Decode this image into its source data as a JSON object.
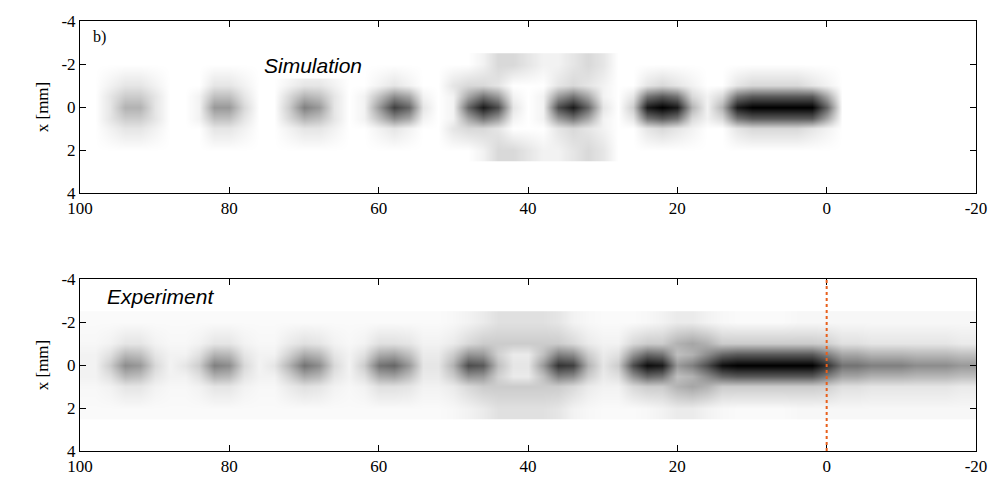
{
  "chart_data": [
    {
      "type": "heatmap",
      "annotations": [
        "b)",
        "Simulation"
      ],
      "ylabel": "x [mm]",
      "xlim": [
        100,
        -20
      ],
      "xticks": [
        100,
        80,
        60,
        40,
        20,
        0,
        -20
      ],
      "ylim": [
        4,
        -4
      ],
      "yticks": [
        -4,
        -2,
        0,
        2,
        4
      ],
      "zlim": [
        0,
        100
      ],
      "colorscale": [
        "#ffffff",
        "#000000"
      ],
      "x": [
        100,
        98,
        96,
        94,
        92,
        90,
        88,
        86,
        84,
        82,
        80,
        78,
        76,
        74,
        72,
        70,
        68,
        66,
        64,
        62,
        60,
        58,
        56,
        54,
        52,
        50,
        48,
        46,
        44,
        42,
        40,
        38,
        36,
        34,
        32,
        30,
        28,
        26,
        24,
        22,
        20,
        18,
        16,
        14,
        12,
        10,
        8,
        6,
        4,
        2,
        0,
        -2,
        -4,
        -6,
        -8,
        -10,
        -12,
        -14,
        -16,
        -18,
        -20
      ],
      "y": [
        -2,
        -1,
        -0.5,
        0,
        0.5,
        1,
        2
      ],
      "z": [
        [
          0,
          0,
          0,
          0,
          0,
          0,
          0,
          0,
          0,
          0,
          0,
          0,
          0,
          0,
          0,
          0,
          0,
          0,
          0,
          0,
          0,
          0,
          0,
          0,
          0,
          0,
          0,
          5,
          15,
          15,
          10,
          5,
          5,
          10,
          15,
          10,
          0,
          0,
          0,
          0,
          0,
          0,
          0,
          0,
          0,
          0,
          0,
          0,
          0,
          0,
          0,
          0,
          0,
          0,
          0,
          0,
          0,
          0,
          0,
          0,
          0
        ],
        [
          0,
          0,
          5,
          10,
          10,
          5,
          0,
          0,
          0,
          10,
          10,
          5,
          0,
          0,
          5,
          10,
          10,
          5,
          0,
          0,
          5,
          10,
          5,
          0,
          0,
          10,
          15,
          15,
          10,
          0,
          0,
          0,
          10,
          15,
          10,
          5,
          0,
          0,
          10,
          15,
          10,
          5,
          0,
          0,
          10,
          15,
          15,
          15,
          15,
          10,
          5,
          0,
          0,
          0,
          0,
          0,
          0,
          0,
          0,
          0,
          0
        ],
        [
          0,
          0,
          10,
          20,
          20,
          10,
          0,
          0,
          5,
          25,
          25,
          10,
          0,
          0,
          15,
          30,
          25,
          10,
          0,
          5,
          25,
          45,
          35,
          5,
          0,
          5,
          35,
          55,
          40,
          5,
          0,
          5,
          40,
          55,
          35,
          5,
          0,
          10,
          55,
          65,
          55,
          15,
          5,
          15,
          55,
          65,
          65,
          65,
          65,
          65,
          35,
          0,
          0,
          0,
          0,
          0,
          0,
          0,
          0,
          0,
          0
        ],
        [
          0,
          0,
          10,
          30,
          30,
          10,
          0,
          0,
          5,
          40,
          40,
          15,
          0,
          0,
          20,
          50,
          40,
          10,
          0,
          5,
          40,
          75,
          60,
          10,
          0,
          5,
          60,
          90,
          70,
          10,
          0,
          5,
          70,
          90,
          60,
          10,
          0,
          20,
          90,
          100,
          90,
          30,
          5,
          30,
          90,
          100,
          100,
          100,
          100,
          100,
          60,
          0,
          0,
          0,
          0,
          0,
          0,
          0,
          0,
          0,
          0
        ],
        [
          0,
          0,
          10,
          20,
          20,
          10,
          0,
          0,
          5,
          25,
          25,
          10,
          0,
          0,
          15,
          30,
          25,
          10,
          0,
          5,
          25,
          45,
          35,
          5,
          0,
          5,
          35,
          55,
          40,
          5,
          0,
          5,
          40,
          55,
          35,
          5,
          0,
          10,
          55,
          65,
          55,
          15,
          5,
          15,
          55,
          65,
          65,
          65,
          65,
          65,
          35,
          0,
          0,
          0,
          0,
          0,
          0,
          0,
          0,
          0,
          0
        ],
        [
          0,
          0,
          5,
          10,
          10,
          5,
          0,
          0,
          0,
          10,
          10,
          5,
          0,
          0,
          5,
          10,
          10,
          5,
          0,
          0,
          5,
          10,
          5,
          0,
          0,
          10,
          15,
          15,
          10,
          0,
          0,
          0,
          10,
          15,
          10,
          5,
          0,
          0,
          10,
          15,
          10,
          5,
          0,
          0,
          10,
          15,
          15,
          15,
          15,
          10,
          5,
          0,
          0,
          0,
          0,
          0,
          0,
          0,
          0,
          0,
          0
        ],
        [
          0,
          0,
          0,
          0,
          0,
          0,
          0,
          0,
          0,
          0,
          0,
          0,
          0,
          0,
          0,
          0,
          0,
          0,
          0,
          0,
          0,
          0,
          0,
          0,
          0,
          0,
          0,
          5,
          15,
          15,
          10,
          5,
          5,
          10,
          15,
          10,
          0,
          0,
          0,
          0,
          0,
          0,
          0,
          0,
          0,
          0,
          0,
          0,
          0,
          0,
          0,
          0,
          0,
          0,
          0,
          0,
          0,
          0,
          0,
          0,
          0
        ]
      ]
    },
    {
      "type": "heatmap",
      "annotations": [
        "Experiment"
      ],
      "ylabel": "x [mm]",
      "xlim": [
        100,
        -20
      ],
      "xticks": [
        100,
        80,
        60,
        40,
        20,
        0,
        -20
      ],
      "ylim": [
        4,
        -4
      ],
      "yticks": [
        -4,
        -2,
        0,
        2,
        4
      ],
      "zlim": [
        0,
        100
      ],
      "colorscale": [
        "#ffffff",
        "#000000"
      ],
      "vline": {
        "x": 0,
        "color": "#e8601c",
        "line_style": "dot"
      },
      "x": [
        100,
        98,
        96,
        94,
        92,
        90,
        88,
        86,
        84,
        82,
        80,
        78,
        76,
        74,
        72,
        70,
        68,
        66,
        64,
        62,
        60,
        58,
        56,
        54,
        52,
        50,
        48,
        46,
        44,
        42,
        40,
        38,
        36,
        34,
        32,
        30,
        28,
        26,
        24,
        22,
        20,
        18,
        16,
        14,
        12,
        10,
        8,
        6,
        4,
        2,
        0,
        -2,
        -4,
        -6,
        -8,
        -10,
        -12,
        -14,
        -16,
        -18,
        -20
      ],
      "y": [
        -2,
        -1,
        -0.5,
        0,
        0.5,
        1,
        2
      ],
      "z": [
        [
          2,
          2,
          2,
          2,
          2,
          2,
          2,
          2,
          2,
          2,
          2,
          2,
          2,
          2,
          2,
          2,
          2,
          2,
          2,
          2,
          2,
          2,
          2,
          2,
          2,
          3,
          5,
          8,
          12,
          12,
          12,
          12,
          10,
          5,
          3,
          2,
          2,
          2,
          3,
          5,
          8,
          8,
          5,
          3,
          2,
          2,
          2,
          2,
          3,
          3,
          3,
          3,
          3,
          3,
          3,
          3,
          3,
          3,
          3,
          3,
          3
        ],
        [
          3,
          3,
          5,
          10,
          10,
          5,
          3,
          3,
          5,
          10,
          10,
          5,
          3,
          3,
          8,
          12,
          10,
          5,
          3,
          5,
          12,
          12,
          10,
          5,
          5,
          8,
          15,
          20,
          20,
          20,
          20,
          20,
          20,
          15,
          8,
          5,
          5,
          15,
          20,
          20,
          30,
          35,
          30,
          20,
          20,
          20,
          20,
          20,
          20,
          20,
          18,
          12,
          12,
          10,
          10,
          10,
          10,
          10,
          10,
          8,
          8
        ],
        [
          5,
          5,
          12,
          28,
          25,
          10,
          5,
          5,
          12,
          30,
          28,
          10,
          5,
          5,
          18,
          33,
          28,
          10,
          5,
          12,
          33,
          36,
          25,
          8,
          8,
          20,
          42,
          40,
          18,
          8,
          8,
          25,
          50,
          45,
          20,
          8,
          12,
          42,
          60,
          55,
          25,
          30,
          45,
          60,
          65,
          65,
          65,
          65,
          65,
          65,
          50,
          35,
          35,
          30,
          30,
          30,
          28,
          28,
          28,
          25,
          25
        ],
        [
          5,
          5,
          20,
          45,
          40,
          15,
          5,
          10,
          20,
          50,
          45,
          15,
          5,
          10,
          30,
          55,
          45,
          15,
          5,
          20,
          55,
          60,
          40,
          10,
          10,
          30,
          70,
          65,
          25,
          10,
          10,
          40,
          80,
          75,
          30,
          10,
          20,
          70,
          95,
          90,
          40,
          50,
          70,
          95,
          100,
          100,
          100,
          100,
          100,
          100,
          80,
          55,
          55,
          50,
          50,
          50,
          45,
          45,
          45,
          40,
          40
        ],
        [
          5,
          5,
          12,
          28,
          25,
          10,
          5,
          5,
          12,
          30,
          28,
          10,
          5,
          5,
          18,
          33,
          28,
          10,
          5,
          12,
          33,
          36,
          25,
          8,
          8,
          20,
          42,
          40,
          18,
          8,
          8,
          25,
          50,
          45,
          20,
          8,
          12,
          42,
          60,
          55,
          25,
          30,
          45,
          60,
          65,
          65,
          65,
          65,
          65,
          65,
          50,
          35,
          35,
          30,
          30,
          30,
          28,
          28,
          28,
          25,
          25
        ],
        [
          3,
          3,
          5,
          10,
          10,
          5,
          3,
          3,
          5,
          10,
          10,
          5,
          3,
          3,
          8,
          12,
          10,
          5,
          3,
          5,
          12,
          12,
          10,
          5,
          5,
          8,
          15,
          20,
          20,
          20,
          20,
          20,
          20,
          15,
          8,
          5,
          5,
          15,
          20,
          20,
          30,
          35,
          30,
          20,
          20,
          20,
          20,
          20,
          20,
          20,
          18,
          12,
          12,
          10,
          10,
          10,
          10,
          10,
          10,
          8,
          8
        ],
        [
          2,
          2,
          2,
          2,
          2,
          2,
          2,
          2,
          2,
          2,
          2,
          2,
          2,
          2,
          2,
          2,
          2,
          2,
          2,
          2,
          2,
          2,
          2,
          2,
          2,
          3,
          5,
          8,
          12,
          12,
          12,
          12,
          10,
          5,
          3,
          2,
          2,
          2,
          3,
          5,
          8,
          8,
          5,
          3,
          2,
          2,
          2,
          2,
          3,
          3,
          3,
          3,
          3,
          3,
          3,
          3,
          3,
          3,
          3,
          3,
          3
        ]
      ]
    }
  ]
}
